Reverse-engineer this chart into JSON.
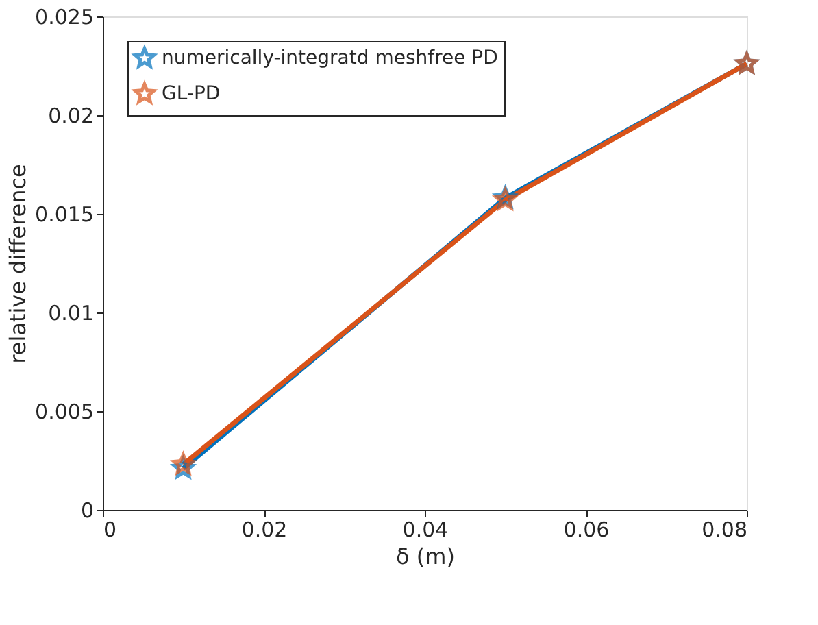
{
  "chart_data": {
    "type": "line",
    "xlabel": "δ (m)",
    "ylabel": "relative difference",
    "x": [
      0.01,
      0.05,
      0.08
    ],
    "series": [
      {
        "name": "numerically-integratd meshfree PD",
        "color": "#0072bd",
        "values": [
          0.0021,
          0.0158,
          0.0226
        ]
      },
      {
        "name": "GL-PD",
        "color": "#d95319",
        "values": [
          0.0023,
          0.0157,
          0.0226
        ]
      }
    ],
    "xlim": [
      0,
      0.08
    ],
    "xticks": [
      0,
      0.02,
      0.04,
      0.06,
      0.08
    ],
    "ylim": [
      0,
      0.025
    ],
    "yticks": [
      0,
      0.005,
      0.01,
      0.015,
      0.02,
      0.025
    ],
    "grid": false,
    "legend": "top left",
    "marker": "star",
    "line_style": "solid"
  }
}
